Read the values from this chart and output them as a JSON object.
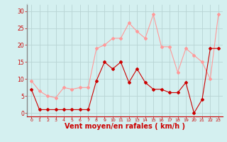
{
  "x": [
    0,
    1,
    2,
    3,
    4,
    5,
    6,
    7,
    8,
    9,
    10,
    11,
    12,
    13,
    14,
    15,
    16,
    17,
    18,
    19,
    20,
    21,
    22,
    23
  ],
  "wind_mean": [
    7,
    1,
    1,
    1,
    1,
    1,
    1,
    1,
    9.5,
    15,
    13,
    15,
    9,
    13,
    9,
    7,
    7,
    6,
    6,
    9,
    0,
    4,
    19,
    19
  ],
  "wind_gust": [
    9.5,
    6.5,
    5,
    4.5,
    7.5,
    7,
    7.5,
    7.5,
    19,
    20,
    22,
    22,
    26.5,
    24,
    22,
    29,
    19.5,
    19.5,
    12,
    19,
    17,
    15,
    10,
    29
  ],
  "mean_color": "#cc0000",
  "gust_color": "#ff9999",
  "bg_color": "#d4f0f0",
  "grid_color": "#b8d4d4",
  "xlabel": "Vent moyen/en rafales ( km/h )",
  "xlabel_color": "#cc0000",
  "xlabel_fontsize": 7,
  "ylabel_ticks": [
    0,
    5,
    10,
    15,
    20,
    25,
    30
  ],
  "xlim": [
    -0.5,
    23.5
  ],
  "ylim": [
    -1,
    32
  ]
}
